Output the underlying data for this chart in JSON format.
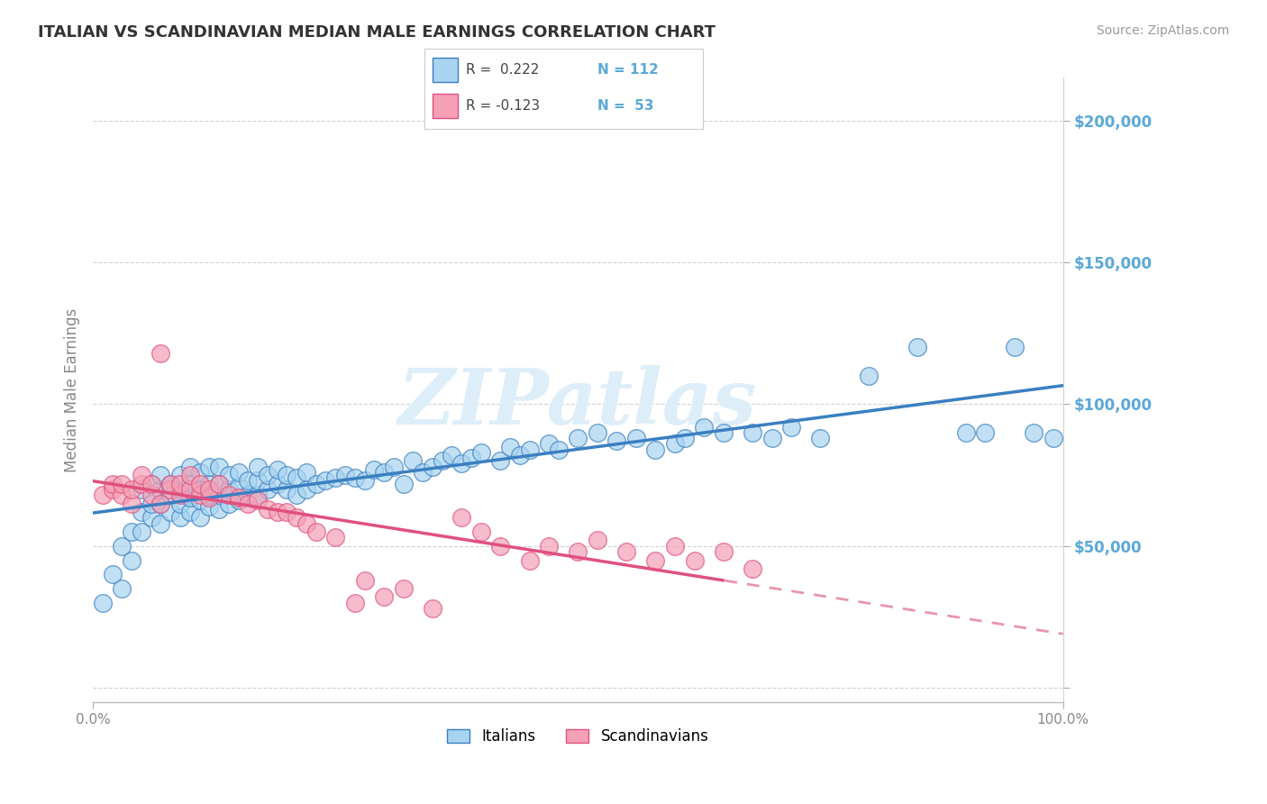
{
  "title": "ITALIAN VS SCANDINAVIAN MEDIAN MALE EARNINGS CORRELATION CHART",
  "source": "Source: ZipAtlas.com",
  "ylabel": "Median Male Earnings",
  "xlim": [
    0.0,
    1.0
  ],
  "ylim": [
    -5000,
    215000
  ],
  "yticks": [
    0,
    50000,
    100000,
    150000,
    200000
  ],
  "ytick_labels": [
    "",
    "$50,000",
    "$100,000",
    "$150,000",
    "$200,000"
  ],
  "background_color": "#ffffff",
  "grid_color": "#cccccc",
  "italian_color": "#a8d4f0",
  "scandinavian_color": "#f5a0b5",
  "italian_line_color": "#3a7fc1",
  "scandinavian_line_color_solid": "#e05080",
  "scandinavian_line_color_dashed": "#e896aa",
  "watermark": "ZIPatlas",
  "title_color": "#333333",
  "axis_label_color": "#888888",
  "tick_color": "#5ba8d8",
  "watermark_color": "#ddeef8",
  "legend_text_color_black": "#444444",
  "legend_text_color_blue": "#5ba8d8",
  "italian_scatter_x": [
    0.01,
    0.02,
    0.03,
    0.03,
    0.04,
    0.04,
    0.05,
    0.05,
    0.05,
    0.06,
    0.06,
    0.06,
    0.07,
    0.07,
    0.07,
    0.07,
    0.08,
    0.08,
    0.08,
    0.09,
    0.09,
    0.09,
    0.09,
    0.1,
    0.1,
    0.1,
    0.1,
    0.11,
    0.11,
    0.11,
    0.11,
    0.12,
    0.12,
    0.12,
    0.12,
    0.13,
    0.13,
    0.13,
    0.13,
    0.14,
    0.14,
    0.14,
    0.15,
    0.15,
    0.15,
    0.16,
    0.16,
    0.17,
    0.17,
    0.17,
    0.18,
    0.18,
    0.19,
    0.19,
    0.2,
    0.2,
    0.21,
    0.21,
    0.22,
    0.22,
    0.23,
    0.24,
    0.25,
    0.26,
    0.27,
    0.28,
    0.29,
    0.3,
    0.31,
    0.32,
    0.33,
    0.34,
    0.35,
    0.36,
    0.37,
    0.38,
    0.39,
    0.4,
    0.42,
    0.43,
    0.44,
    0.45,
    0.47,
    0.48,
    0.5,
    0.52,
    0.54,
    0.56,
    0.58,
    0.6,
    0.61,
    0.63,
    0.65,
    0.68,
    0.7,
    0.72,
    0.75,
    0.8,
    0.85,
    0.9,
    0.92,
    0.95,
    0.97,
    0.99
  ],
  "italian_scatter_y": [
    30000,
    40000,
    50000,
    35000,
    45000,
    55000,
    55000,
    62000,
    70000,
    60000,
    65000,
    72000,
    58000,
    65000,
    70000,
    75000,
    62000,
    68000,
    72000,
    60000,
    65000,
    70000,
    75000,
    62000,
    67000,
    72000,
    78000,
    60000,
    66000,
    70000,
    76000,
    64000,
    68000,
    72000,
    78000,
    63000,
    68000,
    72000,
    78000,
    65000,
    70000,
    75000,
    66000,
    71000,
    76000,
    68000,
    73000,
    68000,
    73000,
    78000,
    70000,
    75000,
    72000,
    77000,
    70000,
    75000,
    68000,
    74000,
    70000,
    76000,
    72000,
    73000,
    74000,
    75000,
    74000,
    73000,
    77000,
    76000,
    78000,
    72000,
    80000,
    76000,
    78000,
    80000,
    82000,
    79000,
    81000,
    83000,
    80000,
    85000,
    82000,
    84000,
    86000,
    84000,
    88000,
    90000,
    87000,
    88000,
    84000,
    86000,
    88000,
    92000,
    90000,
    90000,
    88000,
    92000,
    88000,
    110000,
    120000,
    90000,
    90000,
    120000,
    90000,
    88000
  ],
  "scand_scatter_x": [
    0.01,
    0.02,
    0.02,
    0.03,
    0.03,
    0.04,
    0.04,
    0.05,
    0.05,
    0.06,
    0.06,
    0.07,
    0.07,
    0.08,
    0.08,
    0.09,
    0.09,
    0.1,
    0.1,
    0.11,
    0.11,
    0.12,
    0.12,
    0.13,
    0.14,
    0.15,
    0.16,
    0.17,
    0.18,
    0.19,
    0.2,
    0.21,
    0.22,
    0.23,
    0.25,
    0.27,
    0.28,
    0.3,
    0.32,
    0.35,
    0.38,
    0.4,
    0.42,
    0.45,
    0.47,
    0.5,
    0.52,
    0.55,
    0.58,
    0.6,
    0.62,
    0.65,
    0.68
  ],
  "scand_scatter_y": [
    68000,
    70000,
    72000,
    68000,
    72000,
    65000,
    70000,
    72000,
    75000,
    68000,
    72000,
    65000,
    118000,
    70000,
    72000,
    68000,
    72000,
    70000,
    75000,
    68000,
    72000,
    67000,
    70000,
    72000,
    68000,
    67000,
    65000,
    66000,
    63000,
    62000,
    62000,
    60000,
    58000,
    55000,
    53000,
    30000,
    38000,
    32000,
    35000,
    28000,
    60000,
    55000,
    50000,
    45000,
    50000,
    48000,
    52000,
    48000,
    45000,
    50000,
    45000,
    48000,
    42000
  ]
}
